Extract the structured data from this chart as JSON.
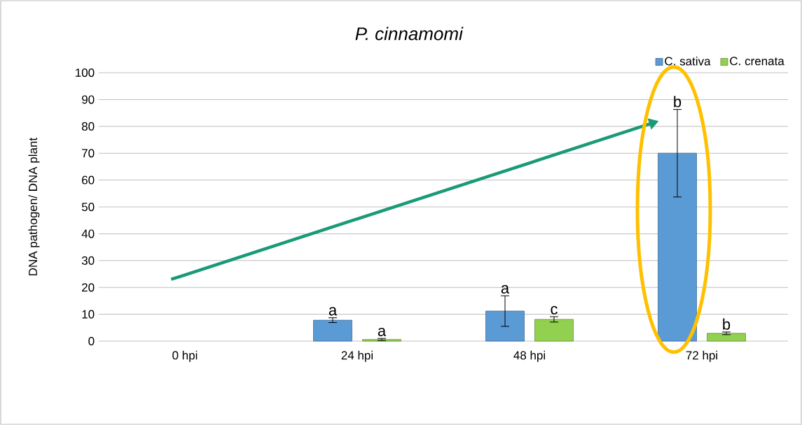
{
  "chart_data": {
    "type": "bar",
    "title": "P. cinnamomi",
    "ylabel": "DNA pathogen/ DNA plant",
    "categories": [
      "0 hpi",
      "24 hpi",
      "48 hpi",
      "72 hpi"
    ],
    "ylim": [
      0,
      100
    ],
    "yticks": [
      0,
      10,
      20,
      30,
      40,
      50,
      60,
      70,
      80,
      90,
      100
    ],
    "grid": "y",
    "legend": "top right",
    "series": [
      {
        "name": "C. sativa",
        "color": "#5b9bd5",
        "values": [
          null,
          7.8,
          11.2,
          70
        ],
        "errors": [
          null,
          0.9,
          5.7,
          16.3
        ],
        "value_labels": [
          null,
          "a",
          "a",
          "b"
        ]
      },
      {
        "name": "C. crenata",
        "color": "#92d050",
        "values": [
          null,
          0.6,
          8.1,
          2.9
        ],
        "errors": [
          null,
          0.4,
          1.0,
          0.5
        ],
        "value_labels": [
          null,
          "a",
          "c",
          "b"
        ]
      }
    ]
  }
}
